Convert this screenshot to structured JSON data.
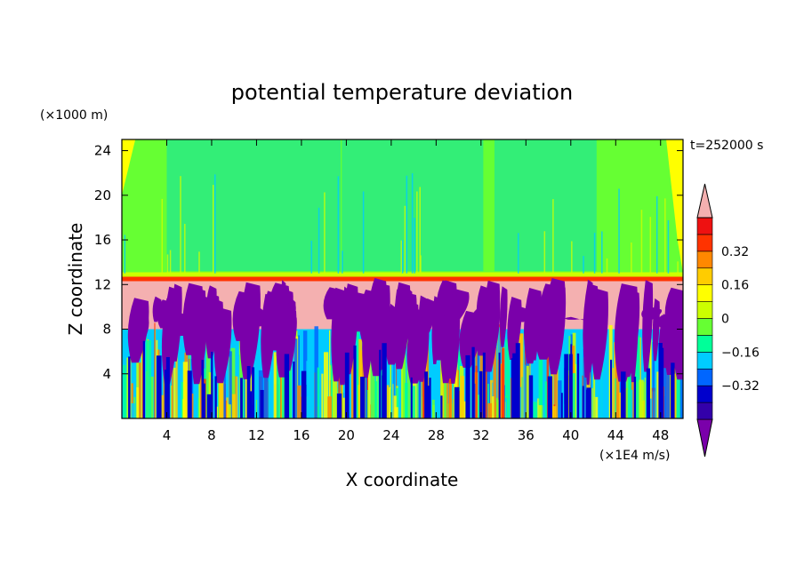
{
  "chart_data": {
    "type": "heatmap",
    "title": "potential temperature deviation",
    "xlabel": "X coordinate",
    "ylabel": "Z coordinate",
    "x_unit": "(×1E4 m/s)",
    "y_unit": "(×1000 m)",
    "time_label": "t=252000 s",
    "xlim": [
      0,
      50
    ],
    "ylim": [
      0,
      25
    ],
    "x_ticks": [
      4,
      8,
      12,
      16,
      20,
      24,
      28,
      32,
      36,
      40,
      44,
      48
    ],
    "y_ticks": [
      4,
      8,
      12,
      16,
      20,
      24
    ],
    "colorbar": {
      "levels": [
        -0.48,
        -0.4,
        -0.32,
        -0.24,
        -0.16,
        -0.08,
        0,
        0.08,
        0.16,
        0.24,
        0.32,
        0.4,
        0.48
      ],
      "tick_labels": [
        "0.32",
        "0.16",
        "0",
        "−0.16",
        "−0.32"
      ],
      "tick_values": [
        0.32,
        0.16,
        0,
        -0.16,
        -0.32
      ],
      "colors": [
        "#7a00aa",
        "#3300aa",
        "#0000cc",
        "#0066ff",
        "#00ccff",
        "#00ff99",
        "#66ff33",
        "#ccff00",
        "#ffff00",
        "#ffcc00",
        "#ff8800",
        "#ff3300",
        "#ee1111",
        "#f4b0b0"
      ],
      "extend": "both"
    },
    "regions": {
      "upper_background": "#66ff33",
      "upper_bands": "#33ee77",
      "edge": "#ffff00",
      "tropopause": "#ff3300",
      "mid_layer": "#f4b0b0",
      "plumes": "#7a00aa"
    }
  }
}
